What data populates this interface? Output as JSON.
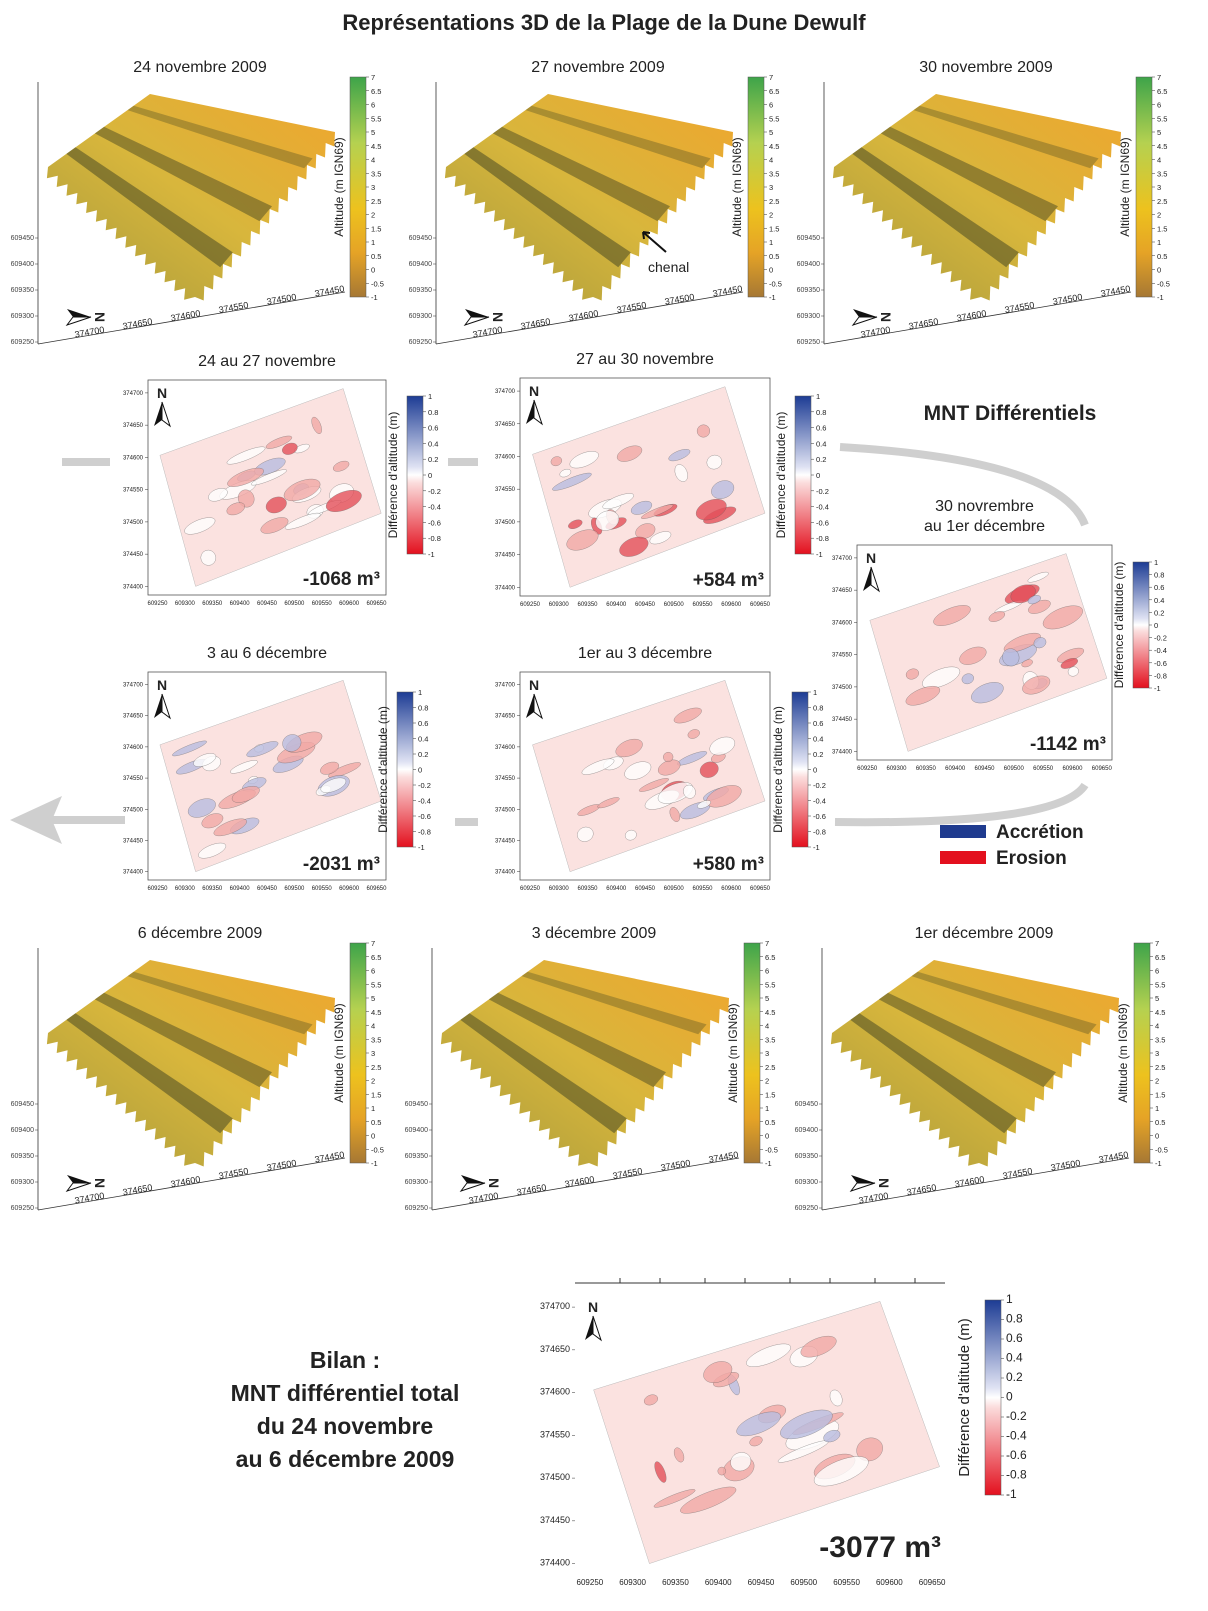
{
  "title": "Représentations 3D de la Plage de la Dune Dewulf",
  "north_label": "N",
  "surface_panels": [
    {
      "title": "24 novembre 2009"
    },
    {
      "title": "27 novembre 2009",
      "annotation": "chenal"
    },
    {
      "title": "30 novembre 2009"
    },
    {
      "title": "6 décembre 2009"
    },
    {
      "title": "3 décembre 2009"
    },
    {
      "title": "1er décembre 2009"
    }
  ],
  "surface_colorbar": {
    "label": "Altitude (m IGN69)",
    "ticks": [
      7,
      6.5,
      6,
      5.5,
      5,
      4.5,
      4,
      3.5,
      3,
      2.5,
      2,
      1.5,
      1,
      0.5,
      0,
      -0.5,
      -1
    ]
  },
  "surface_xticks": [
    374700,
    374650,
    374600,
    374550,
    374500,
    374450
  ],
  "surface_yticks": [
    609250,
    609300,
    609350,
    609400,
    609450
  ],
  "section_title": "MNT Différentiels",
  "diff_panels": [
    {
      "title": [
        "24 au 27 novembre"
      ],
      "volume": "-1068 m³",
      "volume_color": "#e3101e"
    },
    {
      "title": [
        "27 au 30 novembre"
      ],
      "volume": "+584 m³",
      "volume_color": "#1f3b8f"
    },
    {
      "title": [
        "30 novrembre",
        "au 1er décembre"
      ],
      "volume": "-1142 m³",
      "volume_color": "#e3101e"
    },
    {
      "title": [
        "3 au 6 décembre"
      ],
      "volume": "-2031 m³",
      "volume_color": "#e3101e"
    },
    {
      "title": [
        "1er au 3 décembre"
      ],
      "volume": "+580 m³",
      "volume_color": "#1f3b8f"
    }
  ],
  "diff_colorbar": {
    "label": "Différence d'altitude (m)",
    "ticks": [
      1,
      0.8,
      0.6,
      0.4,
      0.2,
      0,
      -0.2,
      -0.4,
      -0.6,
      -0.8,
      -1
    ]
  },
  "diff_xticks": [
    609250,
    609300,
    609350,
    609400,
    609450,
    609500,
    609550,
    609600,
    609650
  ],
  "diff_yticks": [
    374700,
    374650,
    374600,
    374550,
    374500,
    374450,
    374400
  ],
  "legend": [
    {
      "label": "Accrétion",
      "color": "#1f3b8f"
    },
    {
      "label": "Erosion",
      "color": "#e3101e"
    }
  ],
  "summary": {
    "lines": [
      "Bilan :",
      "MNT différentiel total",
      "du 24 novembre",
      "au 6 décembre 2009"
    ],
    "volume": "-3077 m³",
    "volume_color": "#e3101e"
  }
}
